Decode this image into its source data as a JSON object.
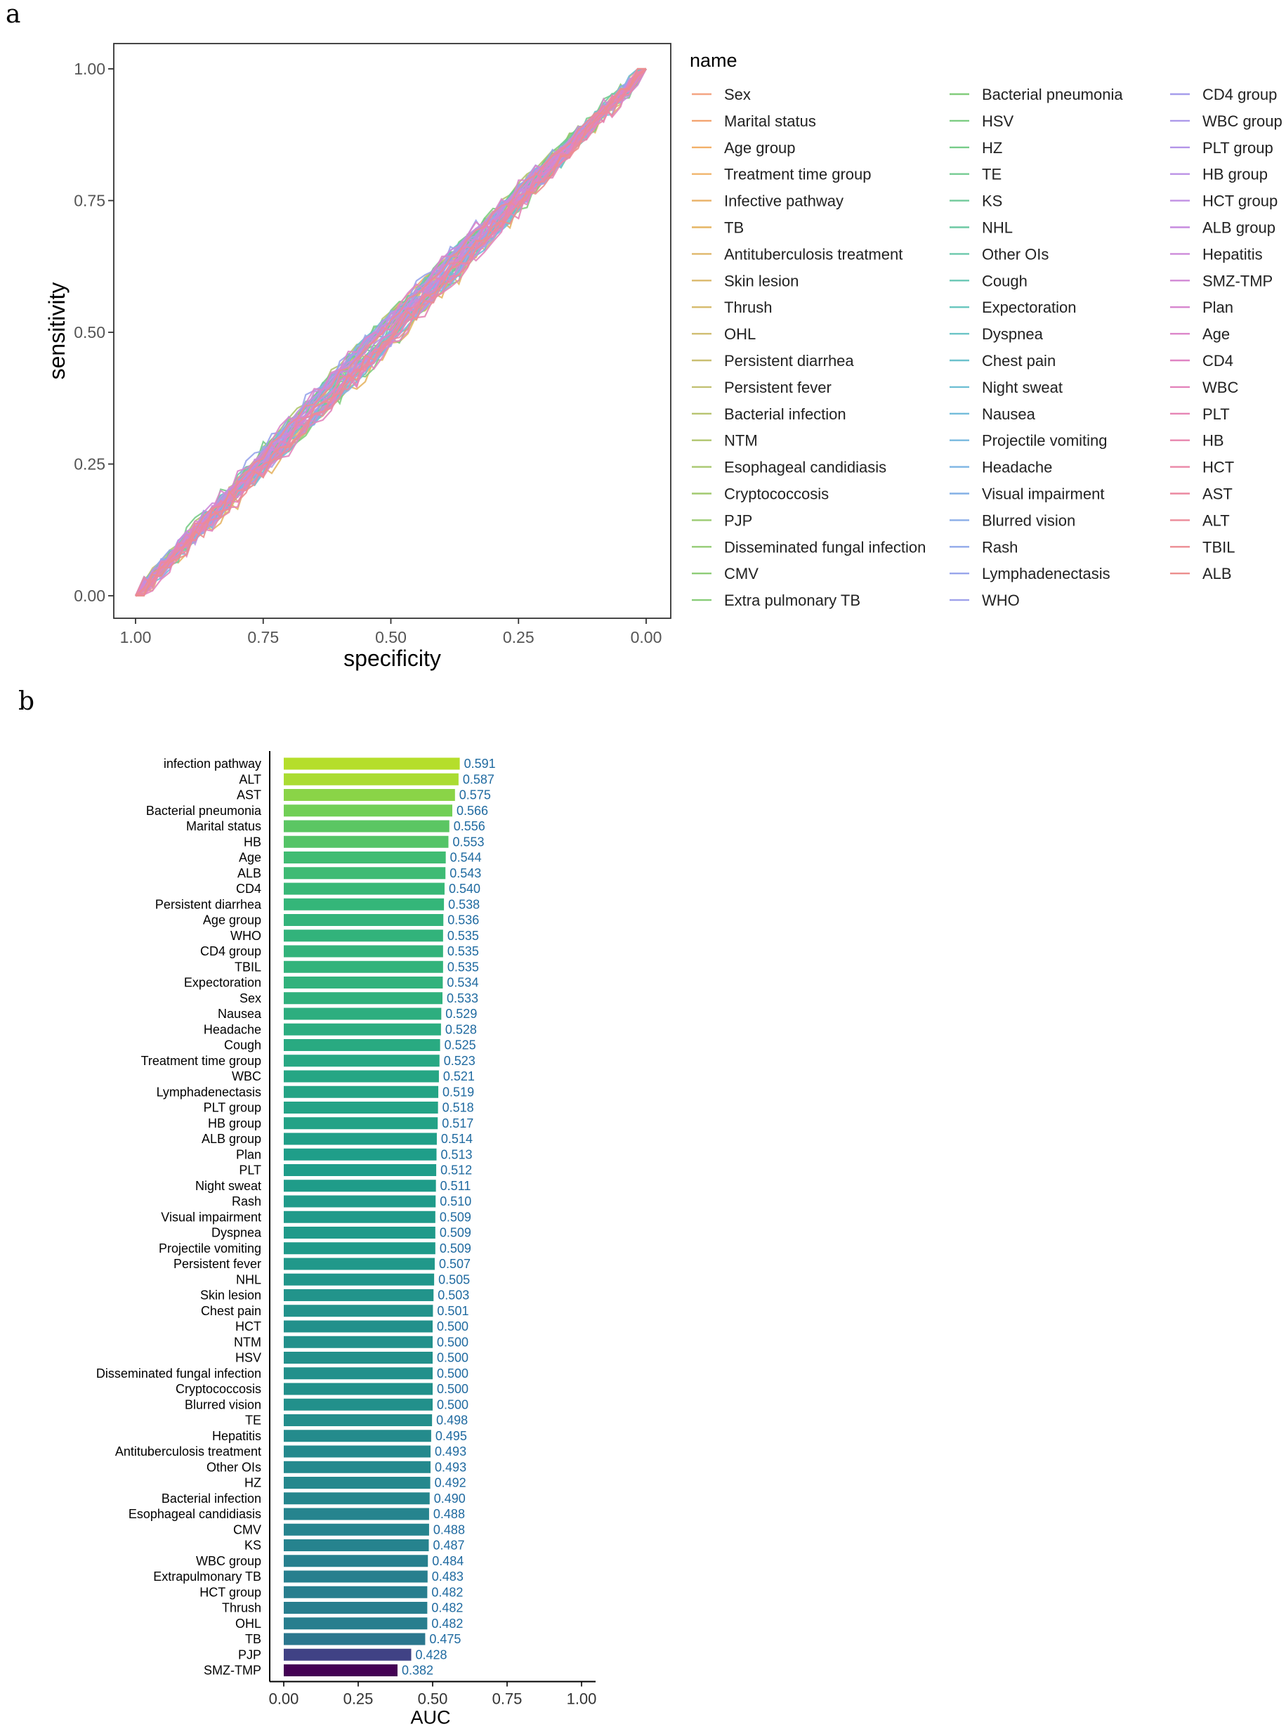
{
  "panels": {
    "a": "a",
    "b": "b"
  },
  "chart_data": [
    {
      "type": "line",
      "chart": "ROC curves",
      "xlabel": "specificity",
      "ylabel": "sensitivity",
      "xlim": [
        1.0,
        0.0
      ],
      "ylim": [
        0.0,
        1.0
      ],
      "x_ticks": [
        "1.00",
        "0.75",
        "0.50",
        "0.25",
        "0.00"
      ],
      "y_ticks": [
        "0.00",
        "0.25",
        "0.50",
        "0.75",
        "1.00"
      ],
      "legend_title": "name",
      "legend": "right",
      "series": [
        {
          "name": "Sex",
          "color": "#f4a582"
        },
        {
          "name": "Marital status",
          "color": "#f3a470"
        },
        {
          "name": "Age group",
          "color": "#f2b06a"
        },
        {
          "name": "Treatment time group",
          "color": "#f0b46c"
        },
        {
          "name": "Infective pathway",
          "color": "#e9b166"
        },
        {
          "name": "TB",
          "color": "#e5b564"
        },
        {
          "name": "Antituberculosis treatment",
          "color": "#dfb76a"
        },
        {
          "name": "Skin lesion",
          "color": "#dbb96c"
        },
        {
          "name": "Thrush",
          "color": "#d6bb6d"
        },
        {
          "name": "OHL",
          "color": "#d0bd70"
        },
        {
          "name": "Persistent diarrhea",
          "color": "#cabf72"
        },
        {
          "name": "Persistent fever",
          "color": "#c2c174"
        },
        {
          "name": "Bacterial infection",
          "color": "#b8c470"
        },
        {
          "name": "NTM",
          "color": "#b0c66e"
        },
        {
          "name": "Esophageal candidiasis",
          "color": "#a8c86f"
        },
        {
          "name": "Cryptococcosis",
          "color": "#a2ca70"
        },
        {
          "name": "PJP",
          "color": "#9bcb72"
        },
        {
          "name": "Disseminated fungal infection",
          "color": "#94cc74"
        },
        {
          "name": "CMV",
          "color": "#8ecd77"
        },
        {
          "name": "Extra pulmonary TB",
          "color": "#88cd78"
        },
        {
          "name": "Bacterial pneumonia",
          "color": "#82cd7c"
        },
        {
          "name": "HSV",
          "color": "#7ccd82"
        },
        {
          "name": "HZ",
          "color": "#78cc8a"
        },
        {
          "name": "TE",
          "color": "#74cb92"
        },
        {
          "name": "KS",
          "color": "#70ca9a"
        },
        {
          "name": "NHL",
          "color": "#6dc9a3"
        },
        {
          "name": "Other OIs",
          "color": "#6bc8ac"
        },
        {
          "name": "Cough",
          "color": "#69c7b5"
        },
        {
          "name": "Expectoration",
          "color": "#69c6be"
        },
        {
          "name": "Dyspnea",
          "color": "#6ac4c6"
        },
        {
          "name": "Chest pain",
          "color": "#6cc2cd"
        },
        {
          "name": "Night sweat",
          "color": "#6fbfd4"
        },
        {
          "name": "Nausea",
          "color": "#73bcda"
        },
        {
          "name": "Projectile vomiting",
          "color": "#78b9df"
        },
        {
          "name": "Headache",
          "color": "#7db5e3"
        },
        {
          "name": "Visual impairment",
          "color": "#84b1e6"
        },
        {
          "name": "Blurred vision",
          "color": "#8aade8"
        },
        {
          "name": "Rash",
          "color": "#91a9ea"
        },
        {
          "name": "Lymphadenectasis",
          "color": "#98a5eb"
        },
        {
          "name": "WHO",
          "color": "#9fa1eb"
        },
        {
          "name": "CD4 group",
          "color": "#a69deb"
        },
        {
          "name": "WBC group",
          "color": "#ad99ea"
        },
        {
          "name": "PLT group",
          "color": "#b495e8"
        },
        {
          "name": "HB group",
          "color": "#bb92e6"
        },
        {
          "name": "HCT group",
          "color": "#c18fe3"
        },
        {
          "name": "ALB group",
          "color": "#c78cdf"
        },
        {
          "name": "Hepatitis",
          "color": "#cd8ada"
        },
        {
          "name": "SMZ-TMP",
          "color": "#d288d5"
        },
        {
          "name": "Plan",
          "color": "#d786cf"
        },
        {
          "name": "Age",
          "color": "#dc85c9"
        },
        {
          "name": "CD4",
          "color": "#e084c3"
        },
        {
          "name": "WBC",
          "color": "#e384bc"
        },
        {
          "name": "PLT",
          "color": "#e685b5"
        },
        {
          "name": "HB",
          "color": "#e886ae"
        },
        {
          "name": "HCT",
          "color": "#ea87a7"
        },
        {
          "name": "AST",
          "color": "#eb88a0"
        },
        {
          "name": "ALT",
          "color": "#ec8a99"
        },
        {
          "name": "TBIL",
          "color": "#ec8c93"
        },
        {
          "name": "ALB",
          "color": "#ec8e8d"
        }
      ]
    },
    {
      "type": "bar",
      "orientation": "horizontal",
      "xlabel": "AUC",
      "xlim": [
        0.0,
        1.0
      ],
      "x_ticks": [
        "0.00",
        "0.25",
        "0.50",
        "0.75",
        "1.00"
      ],
      "categories": [
        "infection pathway",
        "ALT",
        "AST",
        "Bacterial pneumonia",
        "Marital status",
        "HB",
        "Age",
        "ALB",
        "CD4",
        "Persistent diarrhea",
        "Age group",
        "WHO",
        "CD4 group",
        "TBIL",
        "Expectoration",
        "Sex",
        "Nausea",
        "Headache",
        "Cough",
        "Treatment time group",
        "WBC",
        "Lymphadenectasis",
        "PLT group",
        "HB group",
        "ALB group",
        "Plan",
        "PLT",
        "Night sweat",
        "Rash",
        "Visual impairment",
        "Dyspnea",
        "Projectile vomiting",
        "Persistent fever",
        "NHL",
        "Skin lesion",
        "Chest pain",
        "HCT",
        "NTM",
        "HSV",
        "Disseminated fungal infection",
        "Cryptococcosis",
        "Blurred vision",
        "TE",
        "Hepatitis",
        "Antituberculosis treatment",
        "Other OIs",
        "HZ",
        "Bacterial infection",
        "Esophageal candidiasis",
        "CMV",
        "KS",
        "WBC group",
        "Extrapulmonary TB",
        "HCT group",
        "Thrush",
        "OHL",
        "TB",
        "PJP",
        "SMZ-TMP"
      ],
      "values": [
        0.591,
        0.587,
        0.575,
        0.566,
        0.556,
        0.553,
        0.544,
        0.543,
        0.54,
        0.538,
        0.536,
        0.535,
        0.535,
        0.535,
        0.534,
        0.533,
        0.529,
        0.528,
        0.525,
        0.523,
        0.521,
        0.519,
        0.518,
        0.517,
        0.514,
        0.513,
        0.512,
        0.511,
        0.51,
        0.509,
        0.509,
        0.509,
        0.507,
        0.505,
        0.503,
        0.501,
        0.5,
        0.5,
        0.5,
        0.5,
        0.5,
        0.5,
        0.498,
        0.495,
        0.493,
        0.493,
        0.492,
        0.49,
        0.488,
        0.488,
        0.487,
        0.484,
        0.483,
        0.482,
        0.482,
        0.482,
        0.475,
        0.428,
        0.382
      ],
      "value_labels": [
        "0.591",
        "0.587",
        "0.575",
        "0.566",
        "0.556",
        "0.553",
        "0.544",
        "0.543",
        "0.540",
        "0.538",
        "0.536",
        "0.535",
        "0.535",
        "0.535",
        "0.534",
        "0.533",
        "0.529",
        "0.528",
        "0.525",
        "0.523",
        "0.521",
        "0.519",
        "0.518",
        "0.517",
        "0.514",
        "0.513",
        "0.512",
        "0.511",
        "0.510",
        "0.509",
        "0.509",
        "0.509",
        "0.507",
        "0.505",
        "0.503",
        "0.501",
        "0.500",
        "0.500",
        "0.500",
        "0.500",
        "0.500",
        "0.500",
        "0.498",
        "0.495",
        "0.493",
        "0.493",
        "0.492",
        "0.490",
        "0.488",
        "0.488",
        "0.487",
        "0.484",
        "0.483",
        "0.482",
        "0.482",
        "0.482",
        "0.475",
        "0.428",
        "0.382"
      ],
      "color_scale": "viridis"
    }
  ]
}
